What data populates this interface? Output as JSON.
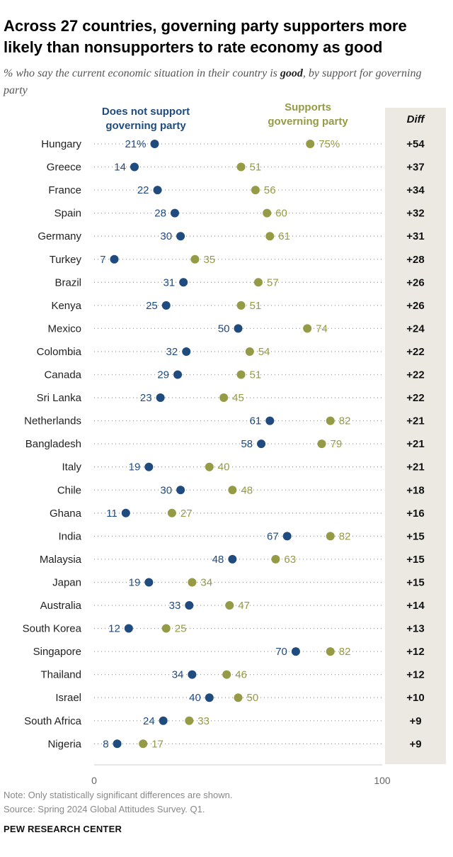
{
  "title": "Across 27 countries, governing party supporters more likely than nonsupporters to rate economy as good",
  "subtitle": {
    "before": "% who say the current economic situation in their country is ",
    "emphasis": "good",
    "after": ", by support for governing party"
  },
  "legend": {
    "nonsupport": [
      "Does not support",
      "governing party"
    ],
    "support": [
      "Supports",
      "governing party"
    ],
    "diff_header": "Diff"
  },
  "colors": {
    "nonsupport": "#1f4b7e",
    "support": "#959a45",
    "diff_bg": "#ebe9e2",
    "dots_line": "#9a9a9a"
  },
  "chart_data": {
    "type": "scatter",
    "title": "Across 27 countries, governing party supporters more likely than nonsupporters to rate economy as good",
    "xlim": [
      0,
      100
    ],
    "xticks": [
      0,
      100
    ],
    "series": [
      {
        "name": "Does not support governing party",
        "key": "nonsupport"
      },
      {
        "name": "Supports governing party",
        "key": "support"
      }
    ],
    "rows": [
      {
        "country": "Hungary",
        "nonsupport": 21,
        "support": 75,
        "diff": "+54",
        "nonsupport_label": "21%",
        "support_label": "75%"
      },
      {
        "country": "Greece",
        "nonsupport": 14,
        "support": 51,
        "diff": "+37",
        "nonsupport_label": "14",
        "support_label": "51"
      },
      {
        "country": "France",
        "nonsupport": 22,
        "support": 56,
        "diff": "+34",
        "nonsupport_label": "22",
        "support_label": "56"
      },
      {
        "country": "Spain",
        "nonsupport": 28,
        "support": 60,
        "diff": "+32",
        "nonsupport_label": "28",
        "support_label": "60"
      },
      {
        "country": "Germany",
        "nonsupport": 30,
        "support": 61,
        "diff": "+31",
        "nonsupport_label": "30",
        "support_label": "61"
      },
      {
        "country": "Turkey",
        "nonsupport": 7,
        "support": 35,
        "diff": "+28",
        "nonsupport_label": "7",
        "support_label": "35"
      },
      {
        "country": "Brazil",
        "nonsupport": 31,
        "support": 57,
        "diff": "+26",
        "nonsupport_label": "31",
        "support_label": "57"
      },
      {
        "country": "Kenya",
        "nonsupport": 25,
        "support": 51,
        "diff": "+26",
        "nonsupport_label": "25",
        "support_label": "51"
      },
      {
        "country": "Mexico",
        "nonsupport": 50,
        "support": 74,
        "diff": "+24",
        "nonsupport_label": "50",
        "support_label": "74"
      },
      {
        "country": "Colombia",
        "nonsupport": 32,
        "support": 54,
        "diff": "+22",
        "nonsupport_label": "32",
        "support_label": "54"
      },
      {
        "country": "Canada",
        "nonsupport": 29,
        "support": 51,
        "diff": "+22",
        "nonsupport_label": "29",
        "support_label": "51"
      },
      {
        "country": "Sri Lanka",
        "nonsupport": 23,
        "support": 45,
        "diff": "+22",
        "nonsupport_label": "23",
        "support_label": "45"
      },
      {
        "country": "Netherlands",
        "nonsupport": 61,
        "support": 82,
        "diff": "+21",
        "nonsupport_label": "61",
        "support_label": "82"
      },
      {
        "country": "Bangladesh",
        "nonsupport": 58,
        "support": 79,
        "diff": "+21",
        "nonsupport_label": "58",
        "support_label": "79"
      },
      {
        "country": "Italy",
        "nonsupport": 19,
        "support": 40,
        "diff": "+21",
        "nonsupport_label": "19",
        "support_label": "40"
      },
      {
        "country": "Chile",
        "nonsupport": 30,
        "support": 48,
        "diff": "+18",
        "nonsupport_label": "30",
        "support_label": "48"
      },
      {
        "country": "Ghana",
        "nonsupport": 11,
        "support": 27,
        "diff": "+16",
        "nonsupport_label": "11",
        "support_label": "27"
      },
      {
        "country": "India",
        "nonsupport": 67,
        "support": 82,
        "diff": "+15",
        "nonsupport_label": "67",
        "support_label": "82"
      },
      {
        "country": "Malaysia",
        "nonsupport": 48,
        "support": 63,
        "diff": "+15",
        "nonsupport_label": "48",
        "support_label": "63"
      },
      {
        "country": "Japan",
        "nonsupport": 19,
        "support": 34,
        "diff": "+15",
        "nonsupport_label": "19",
        "support_label": "34"
      },
      {
        "country": "Australia",
        "nonsupport": 33,
        "support": 47,
        "diff": "+14",
        "nonsupport_label": "33",
        "support_label": "47"
      },
      {
        "country": "South Korea",
        "nonsupport": 12,
        "support": 25,
        "diff": "+13",
        "nonsupport_label": "12",
        "support_label": "25"
      },
      {
        "country": "Singapore",
        "nonsupport": 70,
        "support": 82,
        "diff": "+12",
        "nonsupport_label": "70",
        "support_label": "82"
      },
      {
        "country": "Thailand",
        "nonsupport": 34,
        "support": 46,
        "diff": "+12",
        "nonsupport_label": "34",
        "support_label": "46"
      },
      {
        "country": "Israel",
        "nonsupport": 40,
        "support": 50,
        "diff": "+10",
        "nonsupport_label": "40",
        "support_label": "50"
      },
      {
        "country": "South Africa",
        "nonsupport": 24,
        "support": 33,
        "diff": "+9",
        "nonsupport_label": "24",
        "support_label": "33"
      },
      {
        "country": "Nigeria",
        "nonsupport": 8,
        "support": 17,
        "diff": "+9",
        "nonsupport_label": "8",
        "support_label": "17"
      }
    ]
  },
  "notes": {
    "note": "Note: Only statistically significant differences are shown.",
    "source": "Source: Spring 2024 Global Attitudes Survey. Q1."
  },
  "brand": "PEW RESEARCH CENTER"
}
